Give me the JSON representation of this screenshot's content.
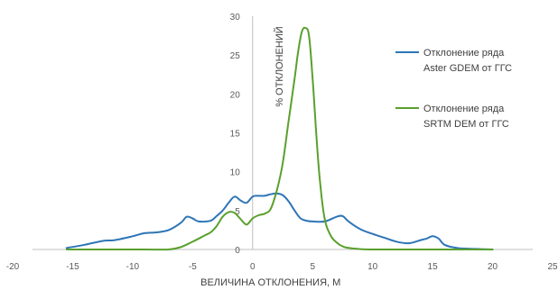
{
  "chart_data": {
    "type": "line",
    "xlabel": "ВЕЛИЧИНА ОТКЛОНЕНИЯ, М",
    "ylabel": "% ОТКЛОНЕНИЙ",
    "xlim": [
      -20,
      25
    ],
    "ylim": [
      0,
      30
    ],
    "x_ticks": [
      "-20",
      "-15",
      "-10",
      "-5",
      "0",
      "5",
      "10",
      "15",
      "20",
      "25"
    ],
    "y_ticks": [
      "0",
      "5",
      "10",
      "15",
      "20",
      "25",
      "30"
    ],
    "grid": false,
    "legend_position": "right",
    "series": [
      {
        "name_lines": [
          "Отклонение ряда",
          "Aster GDEM от ГГС"
        ],
        "color": "#2e75b6",
        "x": [
          -15.5,
          -14,
          -12.5,
          -11.5,
          -10,
          -9,
          -8,
          -7,
          -6,
          -5.5,
          -5,
          -4.5,
          -3.5,
          -3,
          -2.5,
          -2,
          -1.5,
          -1,
          -0.5,
          0,
          0.5,
          1,
          1.5,
          2,
          2.5,
          3,
          3.5,
          4,
          4.5,
          5,
          6,
          7,
          7.5,
          8,
          9,
          10,
          11,
          12,
          13,
          14,
          14.5,
          15,
          15.5,
          16,
          17,
          18,
          19,
          20
        ],
        "y": [
          0.2,
          0.6,
          1.1,
          1.2,
          1.7,
          2.1,
          2.2,
          2.5,
          3.4,
          4.2,
          4.0,
          3.6,
          3.7,
          4.3,
          5.0,
          6.0,
          6.8,
          6.3,
          6.0,
          6.8,
          6.9,
          6.9,
          7.1,
          7.2,
          7.0,
          6.2,
          5.0,
          4.0,
          3.7,
          3.6,
          3.6,
          4.2,
          4.3,
          3.6,
          2.6,
          2.0,
          1.5,
          1.0,
          0.8,
          1.2,
          1.4,
          1.7,
          1.4,
          0.6,
          0.2,
          0.1,
          0.05,
          0
        ]
      },
      {
        "name_lines": [
          "Отклонение ряда",
          "SRTM DEM от ГГС"
        ],
        "color": "#5aa02c",
        "x": [
          -15.5,
          -12,
          -9,
          -7,
          -6,
          -5,
          -4,
          -3.5,
          -3,
          -2.5,
          -2,
          -1.5,
          -1,
          -0.5,
          0,
          0.5,
          1,
          1.5,
          2,
          2.5,
          3,
          3.5,
          3.8,
          4.1,
          4.4,
          4.7,
          5.0,
          5.3,
          5.6,
          6,
          6.5,
          7,
          7.5,
          8,
          9,
          10,
          12,
          15,
          20
        ],
        "y": [
          0,
          0,
          0,
          0,
          0.3,
          1.0,
          1.8,
          2.2,
          3.0,
          4.2,
          4.8,
          4.7,
          3.9,
          3.2,
          4.0,
          4.4,
          4.6,
          5.2,
          7.5,
          11.0,
          16.5,
          22.0,
          25.5,
          28.0,
          28.5,
          27.5,
          22.0,
          15.0,
          9.0,
          4.0,
          1.8,
          0.9,
          0.4,
          0.2,
          0.05,
          0,
          0,
          0,
          0
        ]
      }
    ]
  }
}
